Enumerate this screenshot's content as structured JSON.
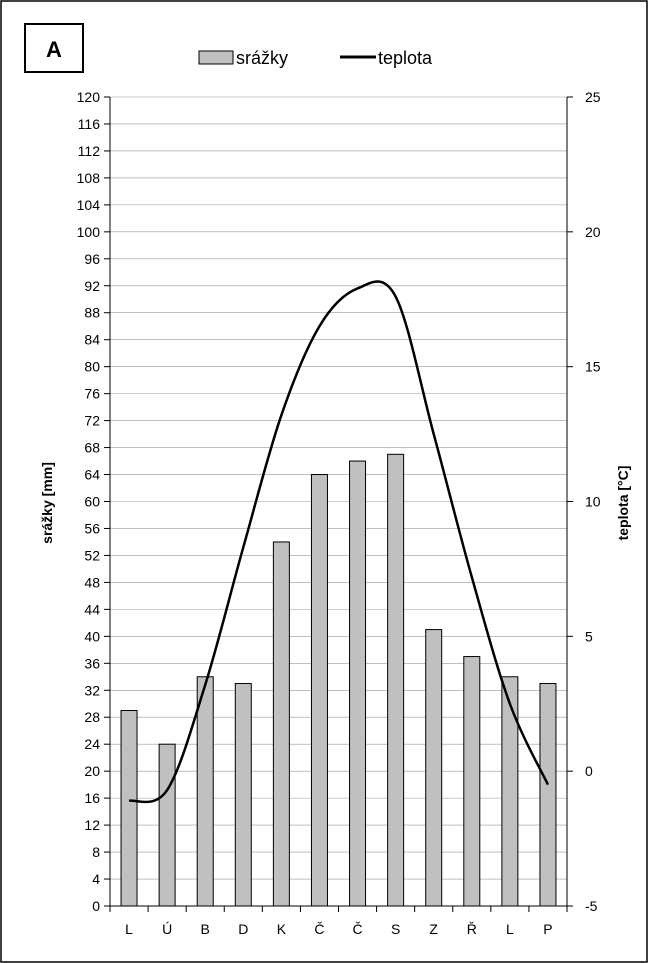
{
  "panel_label": "A",
  "legend": {
    "bar_label": "srážky",
    "line_label": "teplota"
  },
  "colors": {
    "bar_fill": "#c0c0c0",
    "bar_stroke": "#000000",
    "line": "#000000",
    "grid": "#999999"
  },
  "chart_data": {
    "type": "bar",
    "categories": [
      "L",
      "Ú",
      "B",
      "D",
      "K",
      "Č",
      "Č",
      "S",
      "Z",
      "Ř",
      "L",
      "P"
    ],
    "series": [
      {
        "name": "srážky",
        "type": "bar",
        "axis": "left",
        "values": [
          29,
          24,
          34,
          33,
          54,
          64,
          66,
          67,
          41,
          37,
          34,
          33
        ]
      },
      {
        "name": "teplota",
        "type": "line",
        "axis": "right",
        "values": [
          -1.1,
          -0.7,
          3.2,
          8.3,
          13.2,
          16.5,
          17.9,
          17.6,
          12.5,
          7.2,
          2.5,
          -0.5
        ]
      }
    ],
    "ylabel": "srážky [mm]",
    "y2label": "teplota [°C]",
    "ylim": [
      0,
      120
    ],
    "yticks": [
      0,
      4,
      8,
      12,
      16,
      20,
      24,
      28,
      32,
      36,
      40,
      44,
      48,
      52,
      56,
      60,
      64,
      68,
      72,
      76,
      80,
      84,
      88,
      92,
      96,
      100,
      104,
      108,
      112,
      116,
      120
    ],
    "y2lim": [
      -5,
      25
    ],
    "y2ticks": [
      -5,
      0,
      5,
      10,
      15,
      20,
      25
    ],
    "grid": true,
    "legend_position": "top"
  }
}
